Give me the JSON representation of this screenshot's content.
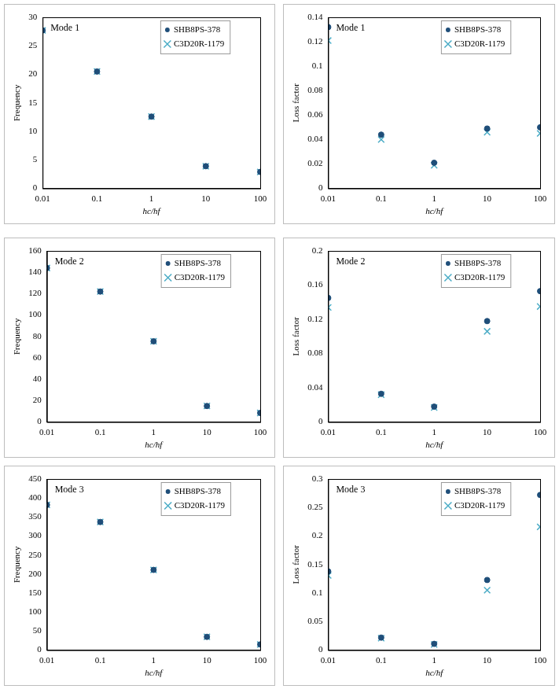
{
  "chart_data": [
    {
      "type": "scatter",
      "annotations": [
        "Mode 1"
      ],
      "x_label": "hc/hf",
      "y_label": "Frequency",
      "x": [
        0.01,
        0.1,
        1,
        10,
        100
      ],
      "log": "x",
      "grid": false,
      "legend": "upper right",
      "xlim": [
        0.01,
        100
      ],
      "xticks": [
        0.01,
        0.1,
        1,
        10,
        100
      ],
      "ylim": [
        0,
        30
      ],
      "yticks": [
        0,
        5,
        10,
        15,
        20,
        25,
        30
      ],
      "series": [
        {
          "name": "SHB8PS-378",
          "color": "#1f4e79",
          "marker": "circle",
          "values": [
            27.7,
            20.5,
            12.6,
            3.9,
            2.9
          ]
        },
        {
          "name": "C3D20R-1179",
          "color": "#4bacc6",
          "marker": "x",
          "values": [
            27.7,
            20.5,
            12.6,
            3.9,
            2.9
          ]
        }
      ]
    },
    {
      "type": "scatter",
      "annotations": [
        "Mode 1"
      ],
      "x_label": "hc/hf",
      "y_label": "Loss factor",
      "x": [
        0.01,
        0.1,
        1,
        10,
        100
      ],
      "log": "x",
      "grid": false,
      "legend": "upper right",
      "xlim": [
        0.01,
        100
      ],
      "xticks": [
        0.01,
        0.1,
        1,
        10,
        100
      ],
      "ylim": [
        0,
        0.14
      ],
      "yticks": [
        0,
        0.02,
        0.04,
        0.06,
        0.08,
        0.1,
        0.12,
        0.14
      ],
      "series": [
        {
          "name": "SHB8PS-378",
          "color": "#1f4e79",
          "marker": "circle",
          "values": [
            0.132,
            0.044,
            0.021,
            0.049,
            0.05
          ]
        },
        {
          "name": "C3D20R-1179",
          "color": "#4bacc6",
          "marker": "x",
          "values": [
            0.121,
            0.04,
            0.019,
            0.046,
            0.045
          ]
        }
      ]
    },
    {
      "type": "scatter",
      "annotations": [
        "Mode 2"
      ],
      "x_label": "hc/hf",
      "y_label": "Frequency",
      "x": [
        0.01,
        0.1,
        1,
        10,
        100
      ],
      "log": "x",
      "grid": false,
      "legend": "upper right",
      "xlim": [
        0.01,
        100
      ],
      "xticks": [
        0.01,
        0.1,
        1,
        10,
        100
      ],
      "ylim": [
        0,
        160
      ],
      "yticks": [
        0,
        20,
        40,
        60,
        80,
        100,
        120,
        140,
        160
      ],
      "series": [
        {
          "name": "SHB8PS-378",
          "color": "#1f4e79",
          "marker": "circle",
          "values": [
            144,
            122,
            75.5,
            15,
            8.5
          ]
        },
        {
          "name": "C3D20R-1179",
          "color": "#4bacc6",
          "marker": "x",
          "values": [
            144,
            122,
            75.5,
            15,
            8.5
          ]
        }
      ]
    },
    {
      "type": "scatter",
      "annotations": [
        "Mode 2"
      ],
      "x_label": "hc/hf",
      "y_label": "Loss factor",
      "x": [
        0.01,
        0.1,
        1,
        10,
        100
      ],
      "log": "x",
      "grid": false,
      "legend": "upper right",
      "xlim": [
        0.01,
        100
      ],
      "xticks": [
        0.01,
        0.1,
        1,
        10,
        100
      ],
      "ylim": [
        0,
        0.2
      ],
      "yticks": [
        0,
        0.04,
        0.08,
        0.12,
        0.16,
        0.2
      ],
      "series": [
        {
          "name": "SHB8PS-378",
          "color": "#1f4e79",
          "marker": "circle",
          "values": [
            0.145,
            0.033,
            0.018,
            0.118,
            0.153
          ]
        },
        {
          "name": "C3D20R-1179",
          "color": "#4bacc6",
          "marker": "x",
          "values": [
            0.134,
            0.032,
            0.017,
            0.106,
            0.135
          ]
        }
      ]
    },
    {
      "type": "scatter",
      "annotations": [
        "Mode 3"
      ],
      "x_label": "hc/hf",
      "y_label": "Frequency",
      "x": [
        0.01,
        0.1,
        1,
        10,
        100
      ],
      "log": "x",
      "grid": false,
      "legend": "upper right",
      "xlim": [
        0.01,
        100
      ],
      "xticks": [
        0.01,
        0.1,
        1,
        10,
        100
      ],
      "ylim": [
        0,
        450
      ],
      "yticks": [
        0,
        50,
        100,
        150,
        200,
        250,
        300,
        350,
        400,
        450
      ],
      "series": [
        {
          "name": "SHB8PS-378",
          "color": "#1f4e79",
          "marker": "circle",
          "values": [
            382,
            337,
            211,
            35,
            15
          ]
        },
        {
          "name": "C3D20R-1179",
          "color": "#4bacc6",
          "marker": "x",
          "values": [
            382,
            337,
            211,
            35,
            15
          ]
        }
      ]
    },
    {
      "type": "scatter",
      "annotations": [
        "Mode 3"
      ],
      "x_label": "hc/hf",
      "y_label": "Loss factor",
      "x": [
        0.01,
        0.1,
        1,
        10,
        100
      ],
      "log": "x",
      "grid": false,
      "legend": "upper right",
      "xlim": [
        0.01,
        100
      ],
      "xticks": [
        0.01,
        0.1,
        1,
        10,
        100
      ],
      "ylim": [
        0,
        0.3
      ],
      "yticks": [
        0,
        0.05,
        0.1,
        0.15,
        0.2,
        0.25,
        0.3
      ],
      "series": [
        {
          "name": "SHB8PS-378",
          "color": "#1f4e79",
          "marker": "circle",
          "values": [
            0.138,
            0.022,
            0.011,
            0.123,
            0.272
          ]
        },
        {
          "name": "C3D20R-1179",
          "color": "#4bacc6",
          "marker": "x",
          "values": [
            0.131,
            0.021,
            0.01,
            0.105,
            0.216
          ]
        }
      ]
    }
  ]
}
